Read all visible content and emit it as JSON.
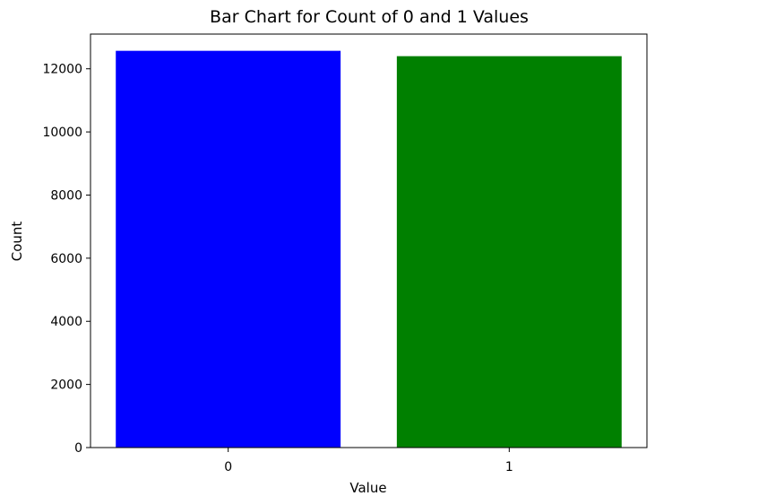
{
  "chart_data": {
    "type": "bar",
    "title": "Bar Chart for Count of 0 and 1 Values",
    "xlabel": "Value",
    "ylabel": "Count",
    "categories": [
      "0",
      "1"
    ],
    "values": [
      12570,
      12400
    ],
    "colors": [
      "#0000ff",
      "#008000"
    ],
    "ylim": [
      0,
      13100
    ],
    "yticks": [
      0,
      2000,
      4000,
      6000,
      8000,
      10000,
      12000
    ],
    "ytick_labels": [
      "0",
      "2000",
      "4000",
      "6000",
      "8000",
      "10000",
      "12000"
    ],
    "grid": false,
    "legend": false
  }
}
